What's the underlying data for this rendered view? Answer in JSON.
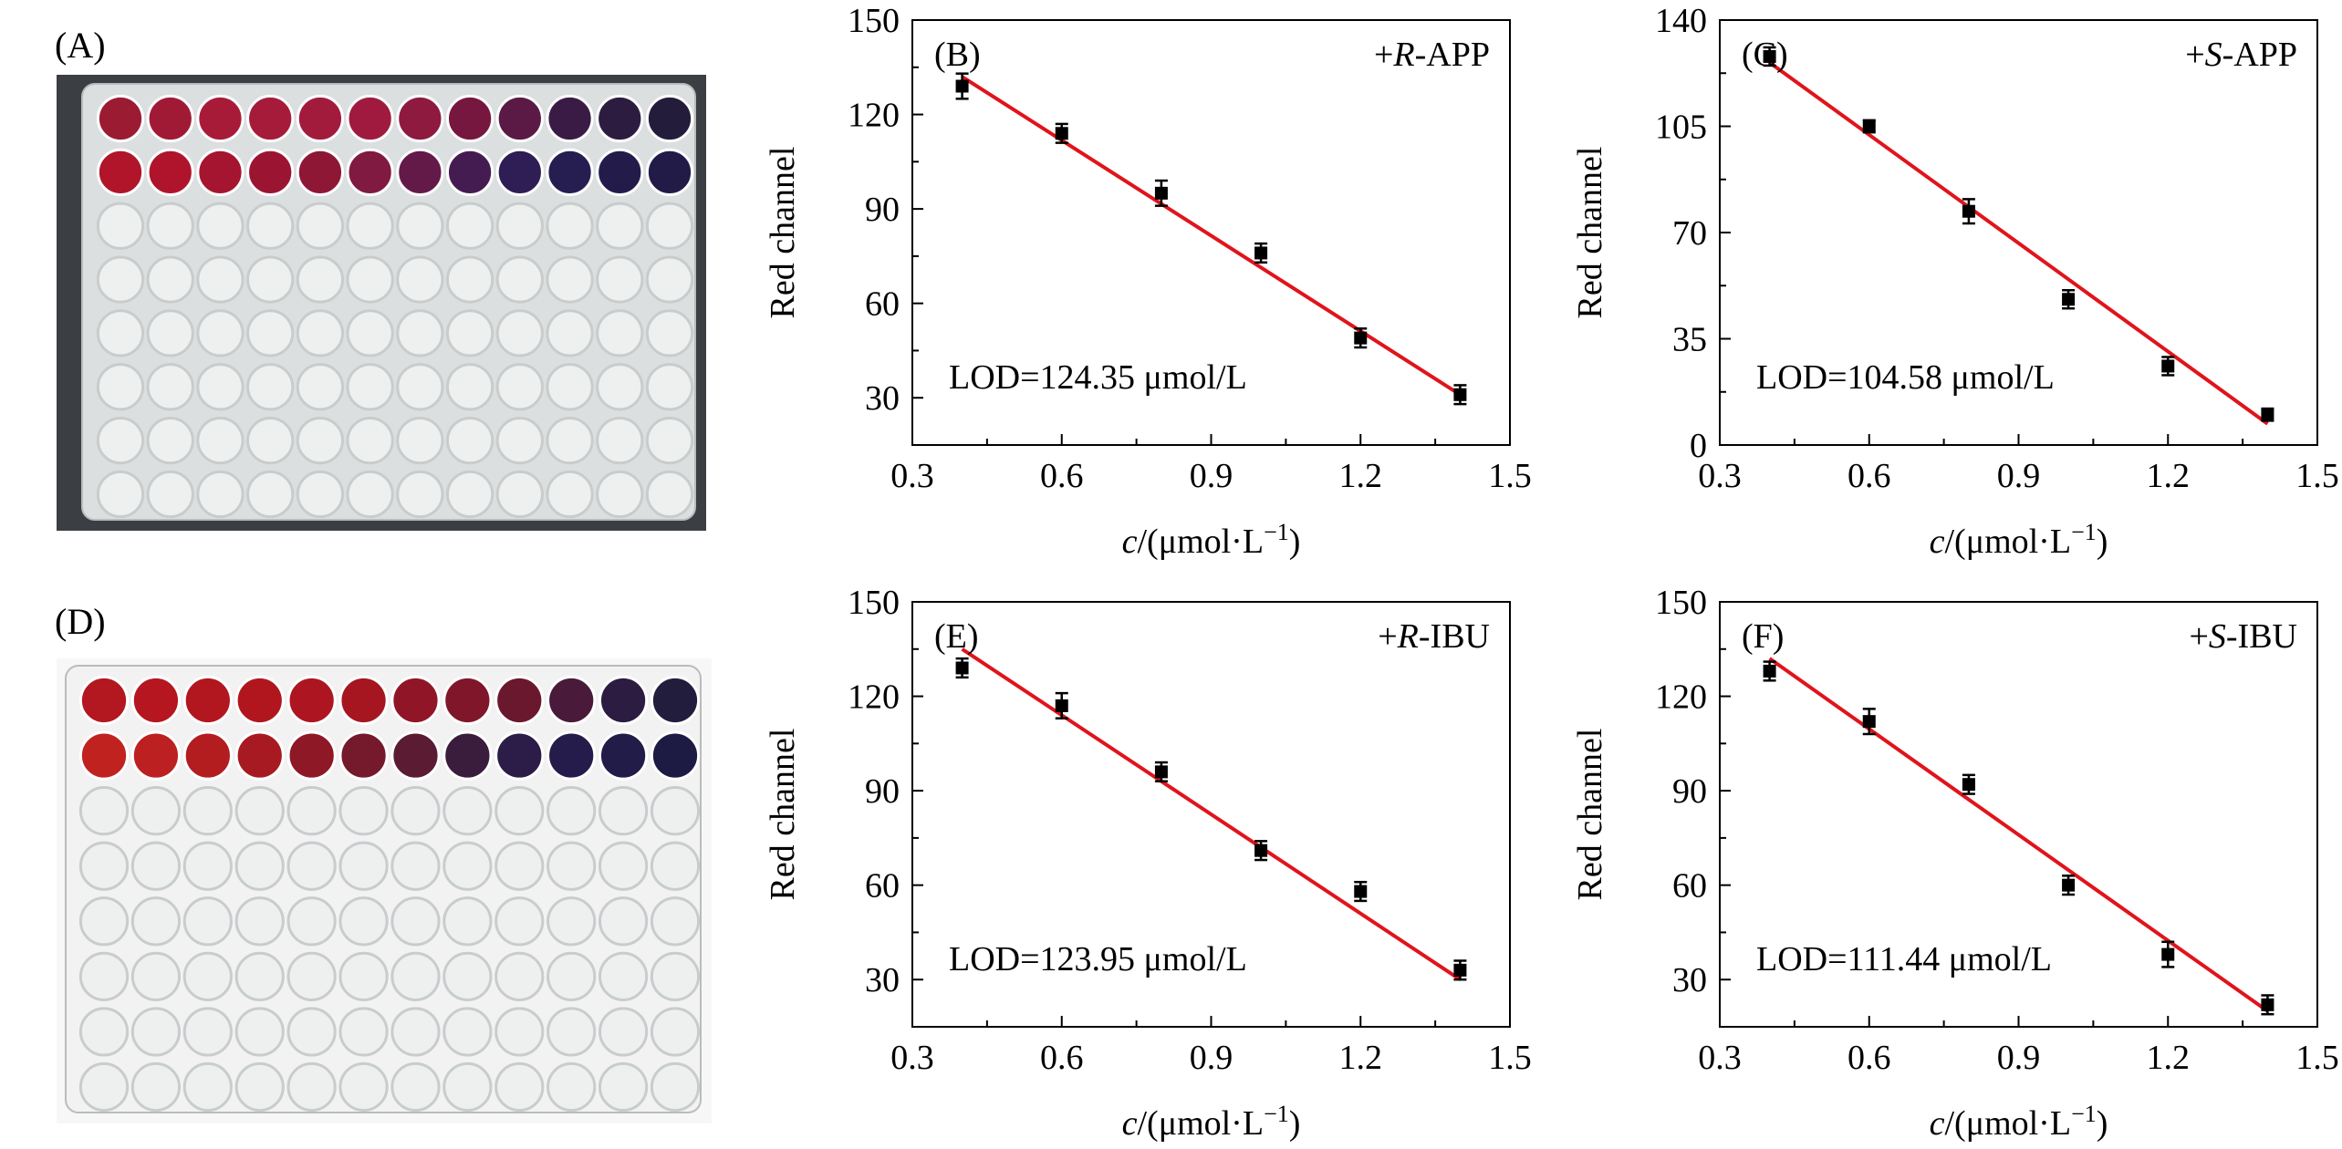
{
  "photos": [
    {
      "label": "(A)",
      "description": "96-well plate, two top rows colored from red to dark blue",
      "row1_colors": [
        "#9b1b32",
        "#a11a35",
        "#a81b38",
        "#a61b3a",
        "#a31b3c",
        "#a01a40",
        "#8e1a40",
        "#76173f",
        "#5a1a45",
        "#3a1b46",
        "#2c1d40",
        "#231c3b"
      ],
      "row2_colors": [
        "#b0152a",
        "#b0142c",
        "#a5152f",
        "#9b1533",
        "#8e1736",
        "#801a40",
        "#641a48",
        "#451c52",
        "#2f1d55",
        "#261d50",
        "#231c4b",
        "#221b47"
      ]
    },
    {
      "label": "(D)",
      "description": "96-well plate, two top rows colored from red to dark blue",
      "row1_colors": [
        "#b3171f",
        "#b5161f",
        "#b2161f",
        "#b1161f",
        "#ad1620",
        "#a51621",
        "#901627",
        "#80162a",
        "#6a182d",
        "#4a1a3a",
        "#2c1c42",
        "#221d3d"
      ],
      "row2_colors": [
        "#c0221f",
        "#bd2020",
        "#b31d20",
        "#a81a22",
        "#8e1826",
        "#741a2c",
        "#5a1b33",
        "#3a1c3c",
        "#2b1c48",
        "#261c4b",
        "#221c49",
        "#1d1b43"
      ]
    }
  ],
  "chart_data": [
    {
      "type": "scatter",
      "panel": "(B)",
      "annotation": "+R-APP",
      "annotation_prefix": "+",
      "annotation_italic": "R",
      "annotation_suffix": "-APP",
      "lod": "LOD=124.35 μmol/L",
      "x": [
        0.4,
        0.6,
        0.8,
        1.0,
        1.2,
        1.4
      ],
      "y": [
        129,
        114,
        95,
        76,
        49,
        31
      ],
      "err": [
        4,
        3,
        4,
        3,
        3,
        3
      ],
      "fit": [
        [
          0.4,
          132
        ],
        [
          1.4,
          31
        ]
      ],
      "xlim": [
        0.3,
        1.5
      ],
      "ylim": [
        15,
        150
      ],
      "xticks": [
        0.3,
        0.6,
        0.9,
        1.2,
        1.5
      ],
      "xtick_labels": [
        "0.3",
        "0.6",
        "0.9",
        "1.2",
        "1.5"
      ],
      "yticks": [
        30,
        60,
        90,
        120,
        150
      ],
      "ytick_labels": [
        "30",
        "60",
        "90",
        "120",
        "150"
      ],
      "xlabel_italic": "c",
      "xlabel": "/(μmol·L",
      "xlabel_sup": "−1",
      "xlabel_end": ")",
      "ylabel": "Red channel"
    },
    {
      "type": "scatter",
      "panel": "(C)",
      "annotation": "+S-APP",
      "annotation_prefix": "+",
      "annotation_italic": "S",
      "annotation_suffix": "-APP",
      "lod": "LOD=104.58 μmol/L",
      "x": [
        0.4,
        0.6,
        0.8,
        1.0,
        1.2,
        1.4
      ],
      "y": [
        128,
        105,
        77,
        48,
        26,
        10
      ],
      "err": [
        3,
        2,
        4,
        3,
        3,
        2
      ],
      "fit": [
        [
          0.4,
          126
        ],
        [
          1.4,
          7
        ]
      ],
      "xlim": [
        0.3,
        1.5
      ],
      "ylim": [
        0,
        140
      ],
      "xticks": [
        0.3,
        0.6,
        0.9,
        1.2,
        1.5
      ],
      "xtick_labels": [
        "0.3",
        "0.6",
        "0.9",
        "1.2",
        "1.5"
      ],
      "yticks": [
        0,
        35,
        70,
        105,
        140
      ],
      "ytick_labels": [
        "0",
        "35",
        "70",
        "105",
        "140"
      ],
      "xlabel_italic": "c",
      "xlabel": "/(μmol·L",
      "xlabel_sup": "−1",
      "xlabel_end": ")",
      "ylabel": "Red channel"
    },
    {
      "type": "scatter",
      "panel": "(E)",
      "annotation": "+R-IBU",
      "annotation_prefix": "+",
      "annotation_italic": "R",
      "annotation_suffix": "-IBU",
      "lod": "LOD=123.95 μmol/L",
      "x": [
        0.4,
        0.6,
        0.8,
        1.0,
        1.2,
        1.4
      ],
      "y": [
        129,
        117,
        96,
        71,
        58,
        33
      ],
      "err": [
        3,
        4,
        3,
        3,
        3,
        3
      ],
      "fit": [
        [
          0.4,
          135
        ],
        [
          1.4,
          30
        ]
      ],
      "xlim": [
        0.3,
        1.5
      ],
      "ylim": [
        15,
        150
      ],
      "xticks": [
        0.3,
        0.6,
        0.9,
        1.2,
        1.5
      ],
      "xtick_labels": [
        "0.3",
        "0.6",
        "0.9",
        "1.2",
        "1.5"
      ],
      "yticks": [
        30,
        60,
        90,
        120,
        150
      ],
      "ytick_labels": [
        "30",
        "60",
        "90",
        "120",
        "150"
      ],
      "xlabel_italic": "c",
      "xlabel": "/(μmol·L",
      "xlabel_sup": "−1",
      "xlabel_end": ")",
      "ylabel": "Red channel"
    },
    {
      "type": "scatter",
      "panel": "(F)",
      "annotation": "+S-IBU",
      "annotation_prefix": "+",
      "annotation_italic": "S",
      "annotation_suffix": "-IBU",
      "lod": "LOD=111.44 μmol/L",
      "x": [
        0.4,
        0.6,
        0.8,
        1.0,
        1.2,
        1.4
      ],
      "y": [
        128,
        112,
        92,
        60,
        38,
        22
      ],
      "err": [
        3,
        4,
        3,
        3,
        4,
        3
      ],
      "fit": [
        [
          0.4,
          132
        ],
        [
          1.4,
          20
        ]
      ],
      "xlim": [
        0.3,
        1.5
      ],
      "ylim": [
        15,
        150
      ],
      "xticks": [
        0.3,
        0.6,
        0.9,
        1.2,
        1.5
      ],
      "xtick_labels": [
        "0.3",
        "0.6",
        "0.9",
        "1.2",
        "1.5"
      ],
      "yticks": [
        30,
        60,
        90,
        120,
        150
      ],
      "ytick_labels": [
        "30",
        "60",
        "90",
        "120",
        "150"
      ],
      "xlabel_italic": "c",
      "xlabel": "/(μmol·L",
      "xlabel_sup": "−1",
      "xlabel_end": ")",
      "ylabel": "Red channel"
    }
  ],
  "colors": {
    "fit_line": "#e0141b",
    "marker": "#000000",
    "axis": "#000000",
    "plate_bg": "#dcdfe0",
    "plate_bg2": "#f2f2f2",
    "empty_well": "#eef0f0",
    "empty_well_rim": "#c8cccd"
  }
}
